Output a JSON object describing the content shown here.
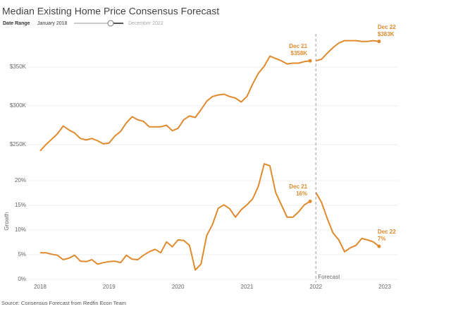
{
  "chart_data": {
    "type": "line",
    "title": "Median Existing Home Price Consensus Forecast",
    "filter": {
      "label": "Date Range",
      "from": "January 2018",
      "to": "December 2022"
    },
    "source": "Source: Consensus Forecast from Redfin Econ Team",
    "forecast": {
      "x": 2022,
      "label": "Forecast"
    },
    "x": [
      2018,
      2018.083,
      2018.167,
      2018.25,
      2018.333,
      2018.417,
      2018.5,
      2018.583,
      2018.667,
      2018.75,
      2018.833,
      2018.917,
      2019,
      2019.083,
      2019.167,
      2019.25,
      2019.333,
      2019.417,
      2019.5,
      2019.583,
      2019.667,
      2019.75,
      2019.833,
      2019.917,
      2020,
      2020.083,
      2020.167,
      2020.25,
      2020.333,
      2020.417,
      2020.5,
      2020.583,
      2020.667,
      2020.75,
      2020.833,
      2020.917,
      2021,
      2021.083,
      2021.167,
      2021.25,
      2021.333,
      2021.417,
      2021.5,
      2021.583,
      2021.667,
      2021.75,
      2021.833,
      2021.917,
      2022,
      2022.083,
      2022.167,
      2022.25,
      2022.333,
      2022.417,
      2022.5,
      2022.583,
      2022.667,
      2022.75,
      2022.833,
      2022.917
    ],
    "xlim": [
      2018,
      2023
    ],
    "xticks": [
      2018,
      2019,
      2020,
      2021,
      2022,
      2023
    ],
    "panels": [
      {
        "ylim": [
          235000,
          390000
        ],
        "yticks": [
          {
            "value": 250000,
            "label": "$250K"
          },
          {
            "value": 300000,
            "label": "$300K"
          },
          {
            "value": 350000,
            "label": "$350K"
          }
        ],
        "grid": true,
        "series": [
          {
            "color": "#e08a2e",
            "values": [
              242000,
              250000,
              257000,
              264000,
              274000,
              269000,
              265000,
              258000,
              256000,
              258000,
              255000,
              251000,
              252000,
              261000,
              267000,
              278000,
              286000,
              282000,
              280000,
              273000,
              273000,
              273000,
              275000,
              268000,
              271000,
              282000,
              287000,
              285000,
              295000,
              306000,
              312000,
              314000,
              315000,
              312000,
              310000,
              305000,
              312000,
              328000,
              342000,
              351000,
              364000,
              361000,
              358000,
              354000,
              355000,
              355000,
              357000,
              358000,
              null,
              null,
              null,
              null,
              null,
              null,
              null,
              null,
              null,
              null,
              null,
              null
            ],
            "value_labels": [
              null,
              null,
              null,
              null,
              null,
              null,
              null,
              null,
              null,
              null,
              null,
              null,
              null,
              null,
              null,
              null,
              null,
              null,
              null,
              null,
              null,
              null,
              null,
              null,
              null,
              null,
              null,
              null,
              null,
              null,
              null,
              null,
              null,
              null,
              null,
              null,
              null,
              null,
              null,
              null,
              null,
              null,
              null,
              null,
              null,
              null,
              null,
              "Dec 21 $358K",
              null,
              null,
              null,
              null,
              null,
              null,
              null,
              null,
              null,
              null,
              null,
              null
            ]
          },
          {
            "color": "#e08a2e",
            "values": [
              null,
              null,
              null,
              null,
              null,
              null,
              null,
              null,
              null,
              null,
              null,
              null,
              null,
              null,
              null,
              null,
              null,
              null,
              null,
              null,
              null,
              null,
              null,
              null,
              null,
              null,
              null,
              null,
              null,
              null,
              null,
              null,
              null,
              null,
              null,
              null,
              null,
              null,
              null,
              null,
              null,
              null,
              null,
              null,
              null,
              null,
              null,
              null,
              358000,
              360000,
              368000,
              375000,
              381000,
              384000,
              384000,
              384000,
              383000,
              383000,
              384000,
              383000
            ],
            "value_labels": [
              null,
              null,
              null,
              null,
              null,
              null,
              null,
              null,
              null,
              null,
              null,
              null,
              null,
              null,
              null,
              null,
              null,
              null,
              null,
              null,
              null,
              null,
              null,
              null,
              null,
              null,
              null,
              null,
              null,
              null,
              null,
              null,
              null,
              null,
              null,
              null,
              null,
              null,
              null,
              null,
              null,
              null,
              null,
              null,
              null,
              null,
              null,
              null,
              null,
              null,
              null,
              null,
              null,
              null,
              null,
              null,
              null,
              null,
              null,
              "Dec 22 $383K"
            ]
          }
        ]
      },
      {
        "ylabel": "Growth",
        "ylim": [
          -0.5,
          24
        ],
        "yticks": [
          {
            "value": 0,
            "label": "0%"
          },
          {
            "value": 5,
            "label": "5%"
          },
          {
            "value": 10,
            "label": "10%"
          },
          {
            "value": 15,
            "label": "15%"
          },
          {
            "value": 20,
            "label": "20%"
          }
        ],
        "grid": true,
        "series": [
          {
            "color": "#e08a2e",
            "values": [
              5.4,
              5.4,
              5.1,
              4.9,
              4.0,
              4.3,
              4.9,
              3.7,
              3.6,
              4.0,
              3.1,
              3.4,
              3.6,
              3.7,
              3.4,
              4.9,
              4.1,
              4.0,
              4.9,
              5.6,
              6.1,
              5.4,
              7.6,
              6.6,
              8.0,
              7.9,
              6.9,
              1.9,
              3.1,
              8.9,
              11.1,
              14.4,
              15.1,
              14.3,
              12.6,
              14.1,
              15.1,
              16.3,
              18.9,
              23.4,
              23.0,
              17.6,
              15.1,
              12.6,
              12.6,
              13.7,
              15.1,
              15.8,
              null,
              null,
              null,
              null,
              null,
              null,
              null,
              null,
              null,
              null,
              null,
              null
            ],
            "value_labels": [
              null,
              null,
              null,
              null,
              null,
              null,
              null,
              null,
              null,
              null,
              null,
              null,
              null,
              null,
              null,
              null,
              null,
              null,
              null,
              null,
              null,
              null,
              null,
              null,
              null,
              null,
              null,
              null,
              null,
              null,
              null,
              null,
              null,
              null,
              null,
              null,
              null,
              null,
              null,
              null,
              null,
              null,
              null,
              null,
              null,
              null,
              null,
              "Dec 21 16%",
              null,
              null,
              null,
              null,
              null,
              null,
              null,
              null,
              null,
              null,
              null,
              null
            ]
          },
          {
            "color": "#e08a2e",
            "values": [
              null,
              null,
              null,
              null,
              null,
              null,
              null,
              null,
              null,
              null,
              null,
              null,
              null,
              null,
              null,
              null,
              null,
              null,
              null,
              null,
              null,
              null,
              null,
              null,
              null,
              null,
              null,
              null,
              null,
              null,
              null,
              null,
              null,
              null,
              null,
              null,
              null,
              null,
              null,
              null,
              null,
              null,
              null,
              null,
              null,
              null,
              null,
              null,
              17.6,
              15.6,
              12.3,
              9.4,
              8.0,
              5.6,
              6.4,
              6.9,
              8.3,
              8.0,
              7.6,
              6.7
            ],
            "value_labels": [
              null,
              null,
              null,
              null,
              null,
              null,
              null,
              null,
              null,
              null,
              null,
              null,
              null,
              null,
              null,
              null,
              null,
              null,
              null,
              null,
              null,
              null,
              null,
              null,
              null,
              null,
              null,
              null,
              null,
              null,
              null,
              null,
              null,
              null,
              null,
              null,
              null,
              null,
              null,
              null,
              null,
              null,
              null,
              null,
              null,
              null,
              null,
              null,
              null,
              null,
              null,
              null,
              null,
              null,
              null,
              null,
              null,
              null,
              null,
              "Dec 22 7%"
            ]
          }
        ]
      }
    ]
  }
}
